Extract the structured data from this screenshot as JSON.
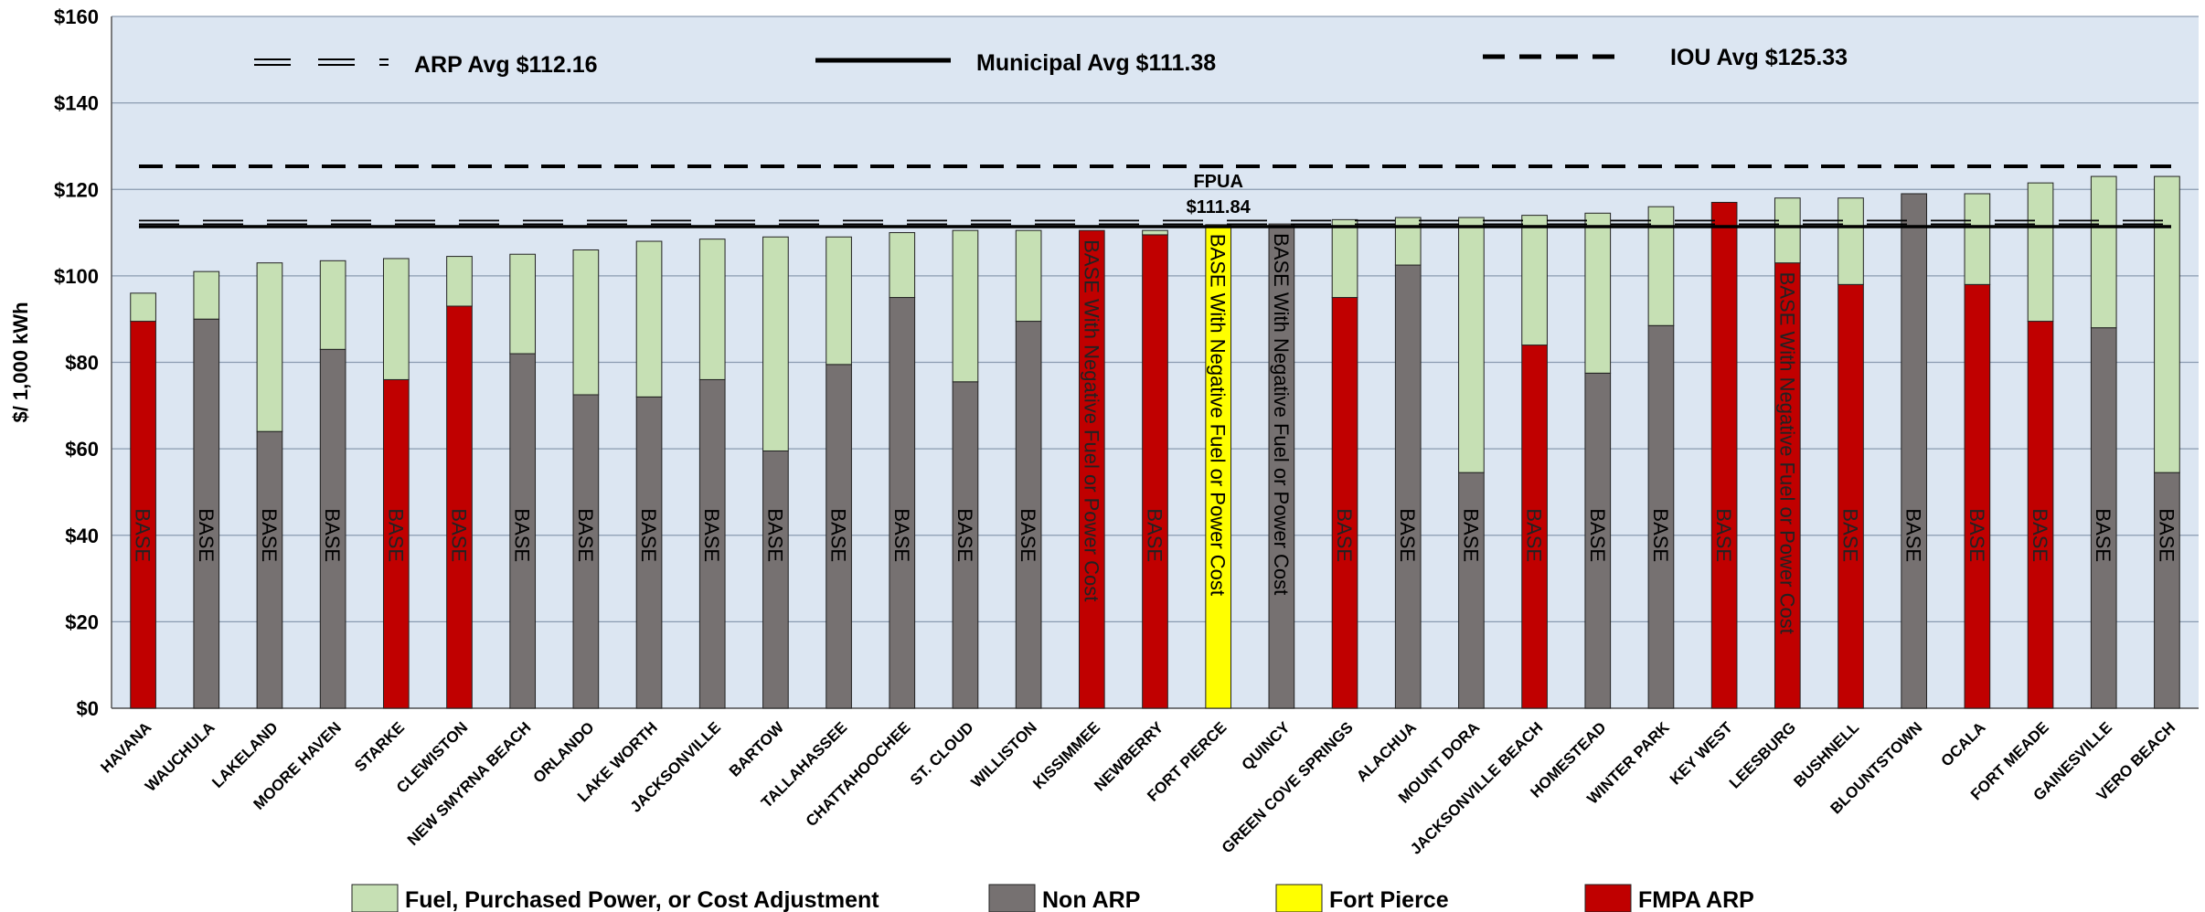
{
  "chart_data": {
    "type": "bar",
    "stacked": true,
    "ylabel": "$/ 1,000 kWh",
    "ylim": [
      0,
      160
    ],
    "yticks": [
      0,
      20,
      40,
      60,
      80,
      100,
      120,
      140,
      160
    ],
    "ytick_labels": [
      "$0",
      "$20",
      "$40",
      "$60",
      "$80",
      "$100",
      "$120",
      "$140",
      "$160"
    ],
    "grid": true,
    "background": "#dce6f2",
    "categories": [
      "HAVANA",
      "WAUCHULA",
      "LAKELAND",
      "MOORE HAVEN",
      "STARKE",
      "CLEWISTON",
      "NEW SMYRNA BEACH",
      "ORLANDO",
      "LAKE WORTH",
      "JACKSONVILLE",
      "BARTOW",
      "TALLAHASSEE",
      "CHATTAHOOCHEE",
      "ST. CLOUD",
      "WILLISTON",
      "KISSIMMEE",
      "NEWBERRY",
      "FORT PIERCE",
      "QUINCY",
      "GREEN COVE SPRINGS",
      "ALACHUA",
      "MOUNT DORA",
      "JACKSONVILLE BEACH",
      "HOMESTEAD",
      "WINTER PARK",
      "KEY WEST",
      "LEESBURG",
      "BUSHNELL",
      "BLOUNTSTOWN",
      "OCALA",
      "FORT MEADE",
      "GAINESVILLE",
      "VERO BEACH"
    ],
    "base_values": [
      89.5,
      90,
      64,
      83,
      76,
      93,
      82,
      72.5,
      72,
      76,
      59.5,
      79.5,
      95,
      75.5,
      89.5,
      110.5,
      109.5,
      111.84,
      112,
      95,
      102.5,
      54.5,
      84,
      77.5,
      88.5,
      117,
      103,
      98,
      119,
      98,
      89.5,
      88,
      54.5
    ],
    "fuel_values": [
      6.5,
      11,
      39,
      20.5,
      28,
      11.5,
      23,
      33.5,
      36,
      32.5,
      49.5,
      29.5,
      15,
      35,
      21,
      0,
      1,
      0,
      0,
      18,
      11,
      59,
      30,
      37,
      27.5,
      0,
      15,
      20,
      0,
      21,
      32,
      35,
      68.5
    ],
    "base_groups": [
      "FMPA ARP",
      "Non ARP",
      "Non ARP",
      "Non ARP",
      "FMPA ARP",
      "FMPA ARP",
      "Non ARP",
      "Non ARP",
      "Non ARP",
      "Non ARP",
      "Non ARP",
      "Non ARP",
      "Non ARP",
      "Non ARP",
      "Non ARP",
      "FMPA ARP",
      "FMPA ARP",
      "Fort Pierce",
      "Non ARP",
      "FMPA ARP",
      "Non ARP",
      "Non ARP",
      "FMPA ARP",
      "Non ARP",
      "Non ARP",
      "FMPA ARP",
      "FMPA ARP",
      "FMPA ARP",
      "Non ARP",
      "FMPA ARP",
      "FMPA ARP",
      "Non ARP",
      "Non ARP"
    ],
    "bar_labels": [
      "BASE",
      "BASE",
      "BASE",
      "BASE",
      "BASE",
      "BASE",
      "BASE",
      "BASE",
      "BASE",
      "BASE",
      "BASE",
      "BASE",
      "BASE",
      "BASE",
      "BASE",
      "BASE With Negative Fuel or Power Cost",
      "BASE",
      "BASE With Negative Fuel or Power Cost",
      "BASE With Negative Fuel or Power Cost",
      "BASE",
      "BASE",
      "BASE",
      "BASE",
      "BASE",
      "BASE",
      "BASE",
      "BASE With Negative Fuel or Power Cost",
      "BASE",
      "BASE",
      "BASE",
      "BASE",
      "BASE",
      "BASE"
    ],
    "reference_lines": [
      {
        "name": "ARP Avg",
        "value": 112.16,
        "label": "ARP Avg $112.16",
        "style": "double-dash"
      },
      {
        "name": "Municipal Avg",
        "value": 111.38,
        "label": "Municipal Avg  $111.38",
        "style": "solid"
      },
      {
        "name": "IOU Avg",
        "value": 125.33,
        "label": "IOU Avg $125.33",
        "style": "dash"
      }
    ],
    "annotation": {
      "category": "FORT PIERCE",
      "lines": [
        "FPUA",
        "$111.84"
      ]
    },
    "legend": {
      "placement": "bottom",
      "items": [
        {
          "label": "Fuel, Purchased Power, or Cost Adjustment",
          "color": "#c6e0b4"
        },
        {
          "label": "Non ARP",
          "color": "#767171"
        },
        {
          "label": "Fort Pierce",
          "color": "#ffff00"
        },
        {
          "label": "FMPA ARP",
          "color": "#c00000"
        }
      ]
    },
    "colors": {
      "fuel": "#c6e0b4",
      "Non ARP": "#767171",
      "Fort Pierce": "#ffff00",
      "FMPA ARP": "#c00000"
    }
  }
}
